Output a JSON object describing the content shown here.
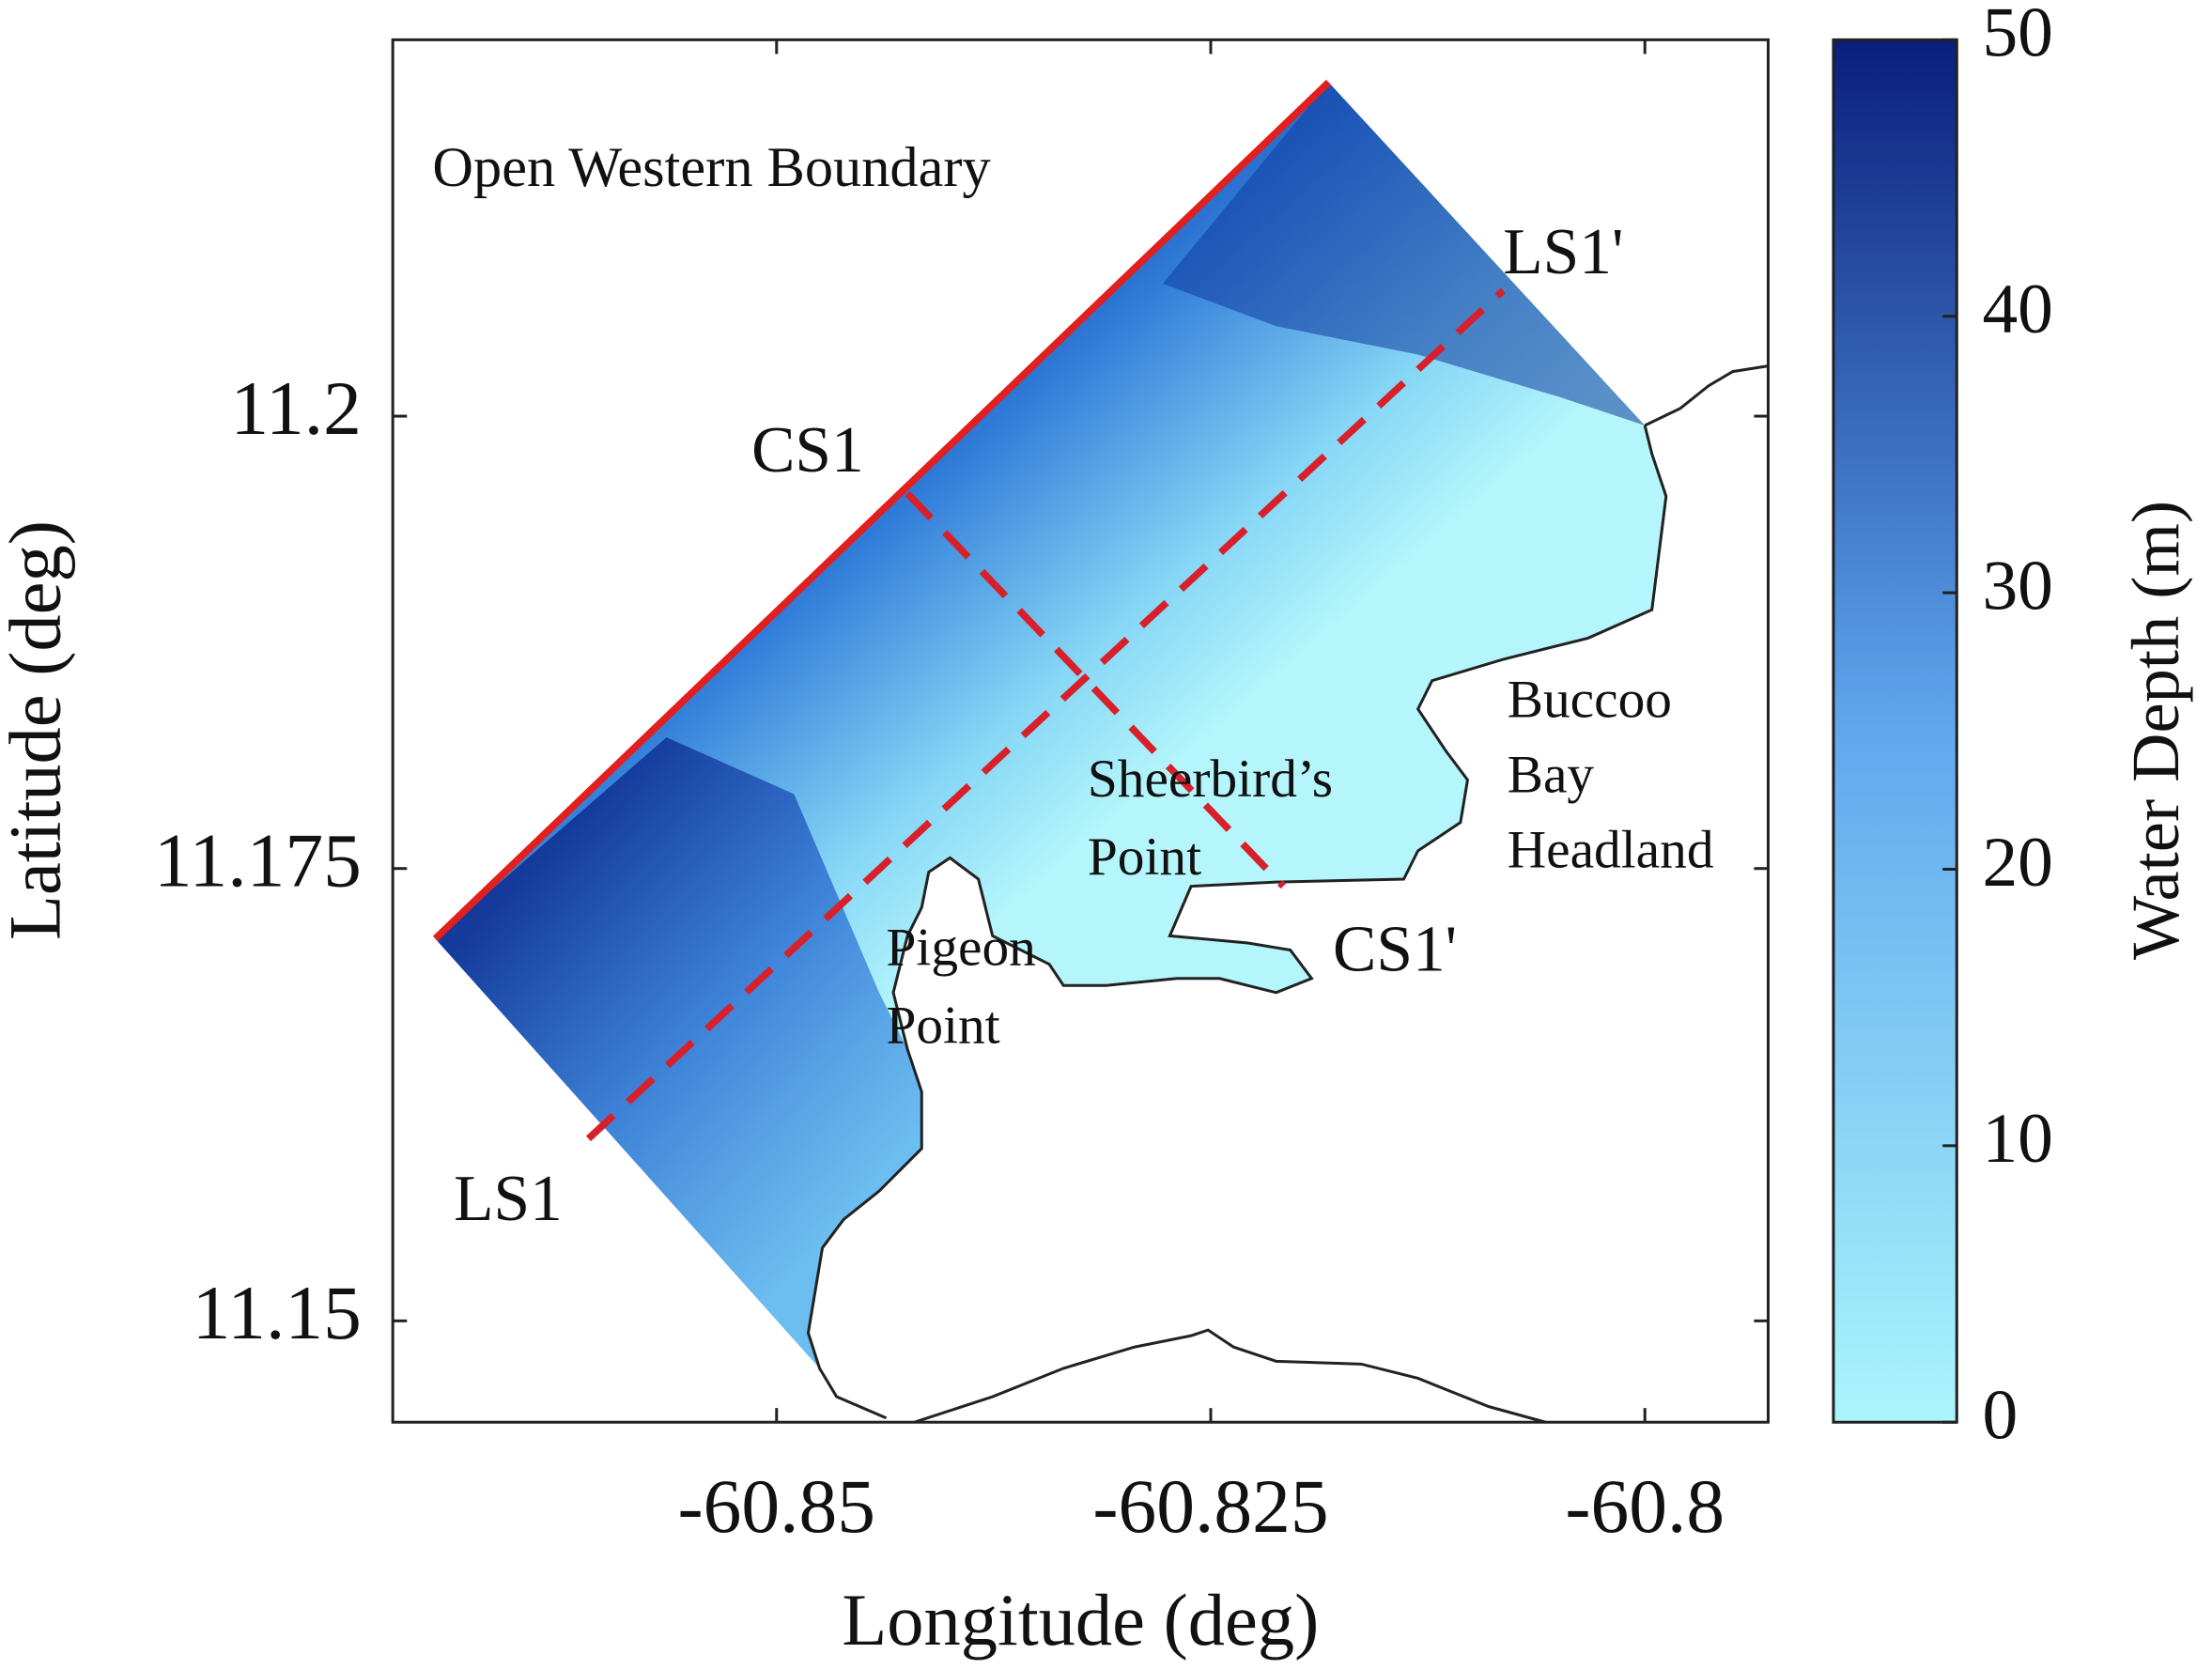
{
  "chart_data": {
    "type": "map",
    "xlabel": "Longitude (deg)",
    "ylabel": "Latitude (deg)",
    "xlim": [
      -60.8721,
      -60.7929
    ],
    "ylim": [
      11.1444,
      11.2208
    ],
    "xticks": [
      -60.85,
      -60.825,
      -60.8
    ],
    "yticks": [
      11.15,
      11.175,
      11.2
    ],
    "colorbar": {
      "label": "Water Depth (m)",
      "lim": [
        0,
        50
      ],
      "ticks": [
        0,
        10,
        20,
        30,
        40,
        50
      ],
      "colors": [
        "#aaf5fc",
        "#5fa8ee",
        "#0a1f7c"
      ]
    },
    "annotations": [
      {
        "lines": [
          "Open Western Boundary"
        ]
      },
      {
        "lines": [
          "LS1'"
        ]
      },
      {
        "lines": [
          "CS1"
        ]
      },
      {
        "lines": [
          "LS1"
        ]
      },
      {
        "lines": [
          "CS1'"
        ]
      },
      {
        "lines": [
          "Sheerbird’s",
          "Point"
        ]
      },
      {
        "lines": [
          "Pigeon",
          "Point"
        ]
      },
      {
        "lines": [
          "Buccoo",
          "Bay",
          "Headland"
        ]
      }
    ]
  }
}
